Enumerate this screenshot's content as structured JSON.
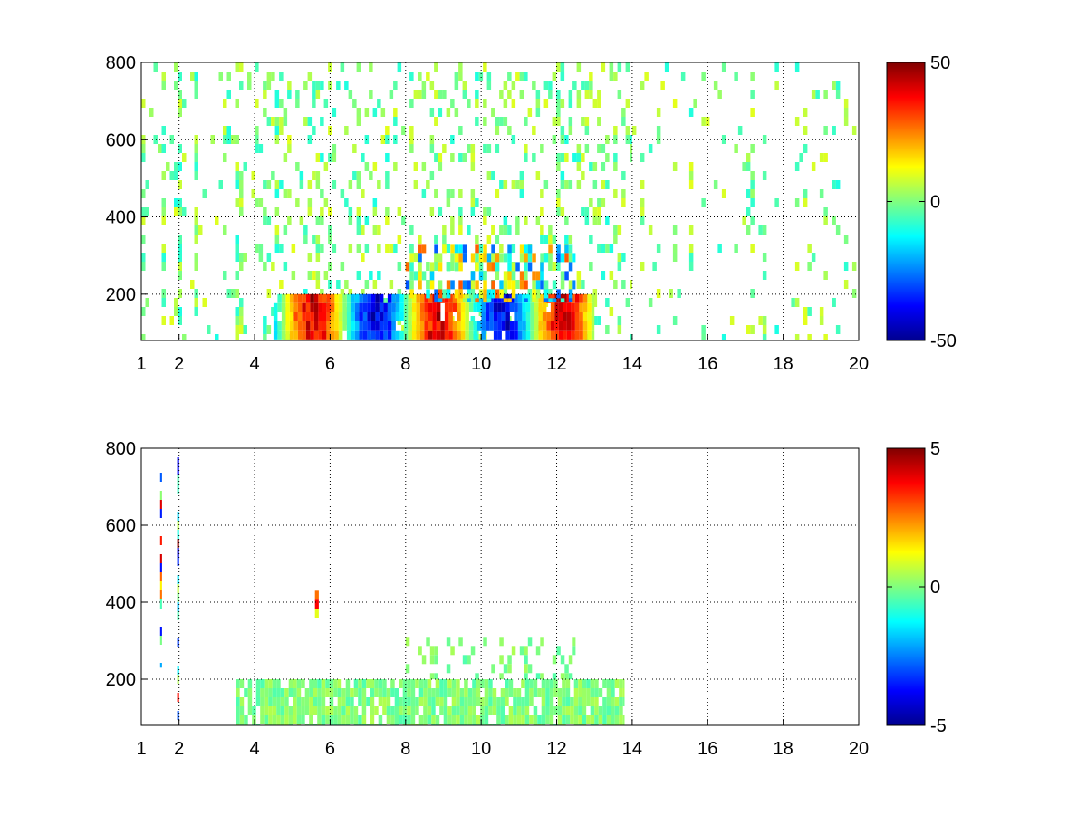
{
  "chart_data": [
    {
      "type": "heatmap",
      "title": "",
      "xlabel": "",
      "ylabel": "",
      "xlim": [
        1,
        20
      ],
      "ylim": [
        80,
        800
      ],
      "x_ticks": [
        1,
        2,
        4,
        6,
        8,
        10,
        12,
        14,
        16,
        18,
        20
      ],
      "x_tick_labels": [
        "1",
        "2",
        "4",
        "6",
        "8",
        "10",
        "12",
        "14",
        "16",
        "18",
        "20"
      ],
      "y_ticks": [
        200,
        400,
        600,
        800
      ],
      "y_tick_labels": [
        "200",
        "400",
        "600",
        "800"
      ],
      "grid": true,
      "grid_style": "dotted",
      "colormap": "jet",
      "clim": [
        -50,
        50
      ],
      "colorbar": {
        "position": "right",
        "ticks": [
          -50,
          0,
          50
        ],
        "tick_labels": [
          "-50",
          "0",
          "50"
        ]
      },
      "regions": [
        {
          "x": [
            1,
            4
          ],
          "y": [
            80,
            800
          ],
          "pattern": "dense vertical streaks",
          "value_range": [
            -10,
            10
          ]
        },
        {
          "x": [
            4,
            14
          ],
          "y": [
            80,
            800
          ],
          "pattern": "sparse speckle",
          "value_range": [
            -10,
            10
          ]
        },
        {
          "x": [
            14,
            20
          ],
          "y": [
            80,
            800
          ],
          "pattern": "sparse vertical streaks",
          "value_range": [
            -10,
            10
          ]
        },
        {
          "x": [
            4.5,
            13
          ],
          "y": [
            80,
            200
          ],
          "pattern": "strong alternating bands",
          "value_range": [
            -50,
            50
          ]
        },
        {
          "x": [
            8,
            12.5
          ],
          "y": [
            180,
            330
          ],
          "pattern": "moderate speckle",
          "value_range": [
            -30,
            30
          ]
        }
      ]
    },
    {
      "type": "heatmap",
      "title": "",
      "xlabel": "",
      "ylabel": "",
      "xlim": [
        1,
        20
      ],
      "ylim": [
        80,
        800
      ],
      "x_ticks": [
        1,
        2,
        4,
        6,
        8,
        10,
        12,
        14,
        16,
        18,
        20
      ],
      "x_tick_labels": [
        "1",
        "2",
        "4",
        "6",
        "8",
        "10",
        "12",
        "14",
        "16",
        "18",
        "20"
      ],
      "y_ticks": [
        200,
        400,
        600,
        800
      ],
      "y_tick_labels": [
        "200",
        "400",
        "600",
        "800"
      ],
      "grid": true,
      "grid_style": "dotted",
      "colormap": "jet",
      "clim": [
        -5,
        5
      ],
      "colorbar": {
        "position": "right",
        "ticks": [
          -5,
          0,
          5
        ],
        "tick_labels": [
          "-5",
          "0",
          "5"
        ]
      },
      "regions": [
        {
          "x": [
            3.5,
            13.8
          ],
          "y": [
            80,
            200
          ],
          "pattern": "near-zero blocks",
          "value_range": [
            -0.5,
            0.5
          ]
        },
        {
          "x": [
            8,
            12.5
          ],
          "y": [
            200,
            310
          ],
          "pattern": "sparse near-zero",
          "value_range": [
            -0.5,
            0.5
          ]
        },
        {
          "x": [
            5.6,
            5.7
          ],
          "y": [
            360,
            430
          ],
          "pattern": "single column",
          "value_range": [
            -5,
            5
          ]
        },
        {
          "x": [
            1.95,
            2.0
          ],
          "y": [
            80,
            800
          ],
          "pattern": "single column",
          "value_range": [
            -5,
            5
          ]
        },
        {
          "x": [
            1.5,
            1.55
          ],
          "y": [
            230,
            760
          ],
          "pattern": "single column",
          "value_range": [
            -5,
            5
          ]
        }
      ]
    }
  ]
}
